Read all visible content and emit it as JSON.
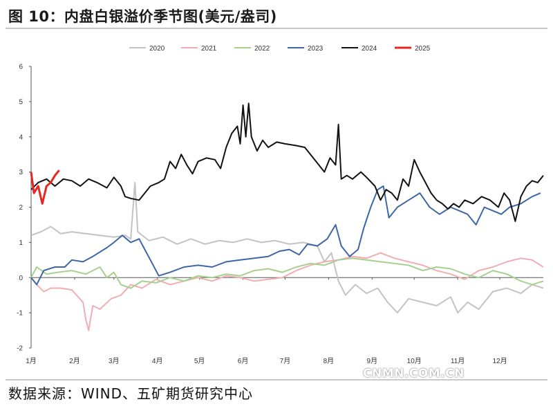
{
  "title": "图 10：内盘白银溢价季节图(美元/盎司)",
  "source": "数据来源：WIND、五矿期货研究中心",
  "watermark": "CNMN.COM.CN",
  "chart_data": {
    "type": "line",
    "title": "",
    "xlabel": "",
    "ylabel": "",
    "ylim": [
      -2,
      6
    ],
    "yticks": [
      "-2",
      "-1",
      "0",
      "1",
      "2",
      "3",
      "4",
      "5",
      "6"
    ],
    "month_labels": [
      "1月",
      "2月",
      "3月",
      "4月",
      "5月",
      "6月",
      "7月",
      "8月",
      "9月",
      "10月",
      "11月",
      "12月"
    ],
    "x_unit": "day_of_year",
    "legend_position": "top",
    "series": [
      {
        "name": "2020",
        "color": "#c3c3c3",
        "width": 2,
        "points": [
          [
            1,
            1.2
          ],
          [
            8,
            1.3
          ],
          [
            15,
            1.45
          ],
          [
            22,
            1.25
          ],
          [
            30,
            1.3
          ],
          [
            40,
            1.25
          ],
          [
            50,
            1.2
          ],
          [
            60,
            1.15
          ],
          [
            68,
            1.2
          ],
          [
            72,
            1.1
          ],
          [
            75,
            2.7
          ],
          [
            77,
            1.3
          ],
          [
            85,
            1.05
          ],
          [
            95,
            1.15
          ],
          [
            105,
            0.95
          ],
          [
            115,
            1.1
          ],
          [
            125,
            0.95
          ],
          [
            135,
            1.05
          ],
          [
            145,
            1.0
          ],
          [
            155,
            1.1
          ],
          [
            165,
            1.0
          ],
          [
            175,
            1.05
          ],
          [
            185,
            0.95
          ],
          [
            195,
            1.0
          ],
          [
            205,
            0.9
          ],
          [
            210,
            0.45
          ],
          [
            215,
            0.7
          ],
          [
            220,
            -0.1
          ],
          [
            225,
            -0.5
          ],
          [
            232,
            -0.2
          ],
          [
            240,
            -0.45
          ],
          [
            248,
            -0.3
          ],
          [
            255,
            -0.7
          ],
          [
            262,
            -1.0
          ],
          [
            270,
            -0.6
          ],
          [
            280,
            -0.7
          ],
          [
            290,
            -0.8
          ],
          [
            300,
            -0.55
          ],
          [
            305,
            -1.0
          ],
          [
            312,
            -0.7
          ],
          [
            320,
            -0.9
          ],
          [
            330,
            -0.4
          ],
          [
            340,
            -0.3
          ],
          [
            350,
            -0.45
          ],
          [
            358,
            -0.2
          ],
          [
            366,
            -0.3
          ]
        ]
      },
      {
        "name": "2021",
        "color": "#f1aeb2",
        "width": 2,
        "points": [
          [
            1,
            0.0
          ],
          [
            5,
            -0.2
          ],
          [
            10,
            -0.4
          ],
          [
            15,
            -0.3
          ],
          [
            22,
            -0.3
          ],
          [
            30,
            -0.35
          ],
          [
            38,
            -0.7
          ],
          [
            40,
            -1.2
          ],
          [
            42,
            -1.5
          ],
          [
            45,
            -0.8
          ],
          [
            50,
            -0.9
          ],
          [
            58,
            -0.6
          ],
          [
            65,
            -0.5
          ],
          [
            72,
            -0.2
          ],
          [
            80,
            -0.3
          ],
          [
            90,
            -0.05
          ],
          [
            100,
            -0.2
          ],
          [
            110,
            -0.1
          ],
          [
            120,
            0.0
          ],
          [
            130,
            -0.1
          ],
          [
            140,
            0.05
          ],
          [
            150,
            0.0
          ],
          [
            160,
            -0.1
          ],
          [
            170,
            -0.05
          ],
          [
            180,
            0.0
          ],
          [
            190,
            0.2
          ],
          [
            200,
            0.35
          ],
          [
            210,
            0.45
          ],
          [
            220,
            0.5
          ],
          [
            230,
            0.6
          ],
          [
            240,
            0.55
          ],
          [
            250,
            0.7
          ],
          [
            260,
            0.55
          ],
          [
            270,
            0.45
          ],
          [
            280,
            0.35
          ],
          [
            290,
            0.2
          ],
          [
            300,
            0.1
          ],
          [
            310,
            -0.05
          ],
          [
            320,
            0.2
          ],
          [
            330,
            0.3
          ],
          [
            340,
            0.45
          ],
          [
            350,
            0.55
          ],
          [
            358,
            0.5
          ],
          [
            366,
            0.3
          ]
        ]
      },
      {
        "name": "2022",
        "color": "#a6d08e",
        "width": 2,
        "points": [
          [
            1,
            0.0
          ],
          [
            5,
            0.3
          ],
          [
            12,
            0.1
          ],
          [
            20,
            0.15
          ],
          [
            30,
            0.2
          ],
          [
            40,
            0.1
          ],
          [
            50,
            0.3
          ],
          [
            55,
            0.0
          ],
          [
            60,
            0.15
          ],
          [
            65,
            -0.2
          ],
          [
            72,
            -0.3
          ],
          [
            80,
            -0.1
          ],
          [
            90,
            -0.15
          ],
          [
            100,
            0.0
          ],
          [
            110,
            -0.1
          ],
          [
            120,
            0.05
          ],
          [
            130,
            0.0
          ],
          [
            140,
            0.1
          ],
          [
            150,
            0.05
          ],
          [
            160,
            0.2
          ],
          [
            170,
            0.25
          ],
          [
            180,
            0.15
          ],
          [
            190,
            0.3
          ],
          [
            200,
            0.4
          ],
          [
            210,
            0.35
          ],
          [
            220,
            0.5
          ],
          [
            230,
            0.55
          ],
          [
            240,
            0.5
          ],
          [
            250,
            0.45
          ],
          [
            260,
            0.4
          ],
          [
            270,
            0.35
          ],
          [
            280,
            0.2
          ],
          [
            290,
            0.3
          ],
          [
            300,
            0.25
          ],
          [
            310,
            0.1
          ],
          [
            320,
            0.0
          ],
          [
            330,
            0.2
          ],
          [
            340,
            0.1
          ],
          [
            350,
            -0.1
          ],
          [
            358,
            -0.2
          ],
          [
            366,
            -0.1
          ]
        ]
      },
      {
        "name": "2023",
        "color": "#3d66a8",
        "width": 2,
        "points": [
          [
            1,
            0.0
          ],
          [
            5,
            -0.2
          ],
          [
            10,
            0.2
          ],
          [
            18,
            0.3
          ],
          [
            25,
            0.3
          ],
          [
            30,
            0.5
          ],
          [
            38,
            0.45
          ],
          [
            45,
            0.6
          ],
          [
            55,
            0.85
          ],
          [
            60,
            1.0
          ],
          [
            66,
            1.2
          ],
          [
            72,
            1.0
          ],
          [
            78,
            1.1
          ],
          [
            82,
            0.8
          ],
          [
            86,
            0.5
          ],
          [
            92,
            0.05
          ],
          [
            100,
            0.15
          ],
          [
            110,
            0.3
          ],
          [
            120,
            0.35
          ],
          [
            130,
            0.3
          ],
          [
            140,
            0.45
          ],
          [
            150,
            0.5
          ],
          [
            160,
            0.55
          ],
          [
            170,
            0.6
          ],
          [
            178,
            0.75
          ],
          [
            185,
            0.8
          ],
          [
            192,
            0.65
          ],
          [
            198,
            0.95
          ],
          [
            205,
            0.9
          ],
          [
            212,
            1.1
          ],
          [
            218,
            1.5
          ],
          [
            222,
            0.9
          ],
          [
            228,
            0.6
          ],
          [
            234,
            0.8
          ],
          [
            238,
            1.4
          ],
          [
            243,
            2.0
          ],
          [
            248,
            2.5
          ],
          [
            252,
            2.6
          ],
          [
            256,
            1.7
          ],
          [
            262,
            2.0
          ],
          [
            270,
            2.2
          ],
          [
            278,
            2.4
          ],
          [
            285,
            2.0
          ],
          [
            292,
            1.8
          ],
          [
            300,
            2.0
          ],
          [
            306,
            1.9
          ],
          [
            312,
            1.8
          ],
          [
            318,
            1.5
          ],
          [
            324,
            2.0
          ],
          [
            330,
            1.9
          ],
          [
            336,
            1.8
          ],
          [
            342,
            2.0
          ],
          [
            350,
            2.1
          ],
          [
            358,
            2.3
          ],
          [
            364,
            2.4
          ]
        ]
      },
      {
        "name": "2024",
        "color": "#111111",
        "width": 2,
        "points": [
          [
            1,
            2.5
          ],
          [
            6,
            2.7
          ],
          [
            12,
            2.8
          ],
          [
            18,
            2.6
          ],
          [
            24,
            2.8
          ],
          [
            30,
            2.75
          ],
          [
            36,
            2.6
          ],
          [
            42,
            2.8
          ],
          [
            48,
            2.7
          ],
          [
            55,
            2.55
          ],
          [
            60,
            2.85
          ],
          [
            65,
            2.6
          ],
          [
            68,
            2.3
          ],
          [
            72,
            2.25
          ],
          [
            78,
            2.2
          ],
          [
            82,
            2.4
          ],
          [
            86,
            2.6
          ],
          [
            92,
            2.7
          ],
          [
            96,
            2.8
          ],
          [
            100,
            3.3
          ],
          [
            104,
            3.1
          ],
          [
            108,
            3.5
          ],
          [
            112,
            3.2
          ],
          [
            116,
            2.95
          ],
          [
            120,
            3.3
          ],
          [
            126,
            3.4
          ],
          [
            132,
            3.35
          ],
          [
            136,
            3.1
          ],
          [
            140,
            3.7
          ],
          [
            144,
            4.1
          ],
          [
            148,
            4.3
          ],
          [
            150,
            3.8
          ],
          [
            152,
            4.9
          ],
          [
            154,
            4.0
          ],
          [
            156,
            4.95
          ],
          [
            158,
            4.0
          ],
          [
            162,
            3.6
          ],
          [
            166,
            3.9
          ],
          [
            170,
            3.7
          ],
          [
            176,
            3.85
          ],
          [
            182,
            3.8
          ],
          [
            190,
            3.75
          ],
          [
            196,
            3.7
          ],
          [
            202,
            3.4
          ],
          [
            206,
            3.2
          ],
          [
            210,
            3.0
          ],
          [
            214,
            3.4
          ],
          [
            218,
            3.2
          ],
          [
            220,
            4.35
          ],
          [
            222,
            2.8
          ],
          [
            226,
            2.9
          ],
          [
            230,
            2.8
          ],
          [
            236,
            3.0
          ],
          [
            240,
            2.85
          ],
          [
            246,
            2.6
          ],
          [
            250,
            2.2
          ],
          [
            254,
            2.5
          ],
          [
            258,
            2.4
          ],
          [
            262,
            2.2
          ],
          [
            266,
            2.8
          ],
          [
            270,
            2.6
          ],
          [
            274,
            3.35
          ],
          [
            278,
            3.0
          ],
          [
            282,
            2.7
          ],
          [
            286,
            2.4
          ],
          [
            290,
            2.2
          ],
          [
            294,
            2.1
          ],
          [
            298,
            1.95
          ],
          [
            302,
            2.1
          ],
          [
            306,
            2.0
          ],
          [
            310,
            2.2
          ],
          [
            316,
            2.1
          ],
          [
            322,
            2.3
          ],
          [
            328,
            2.2
          ],
          [
            334,
            2.0
          ],
          [
            338,
            2.4
          ],
          [
            342,
            2.2
          ],
          [
            346,
            1.6
          ],
          [
            350,
            2.3
          ],
          [
            354,
            2.6
          ],
          [
            358,
            2.75
          ],
          [
            362,
            2.7
          ],
          [
            366,
            2.9
          ]
        ]
      },
      {
        "name": "2025",
        "color": "#e8261f",
        "width": 3,
        "points": [
          [
            1,
            3.0
          ],
          [
            3,
            2.4
          ],
          [
            6,
            2.6
          ],
          [
            9,
            2.1
          ],
          [
            12,
            2.6
          ],
          [
            15,
            2.7
          ],
          [
            18,
            2.9
          ],
          [
            21,
            3.05
          ]
        ]
      }
    ]
  }
}
